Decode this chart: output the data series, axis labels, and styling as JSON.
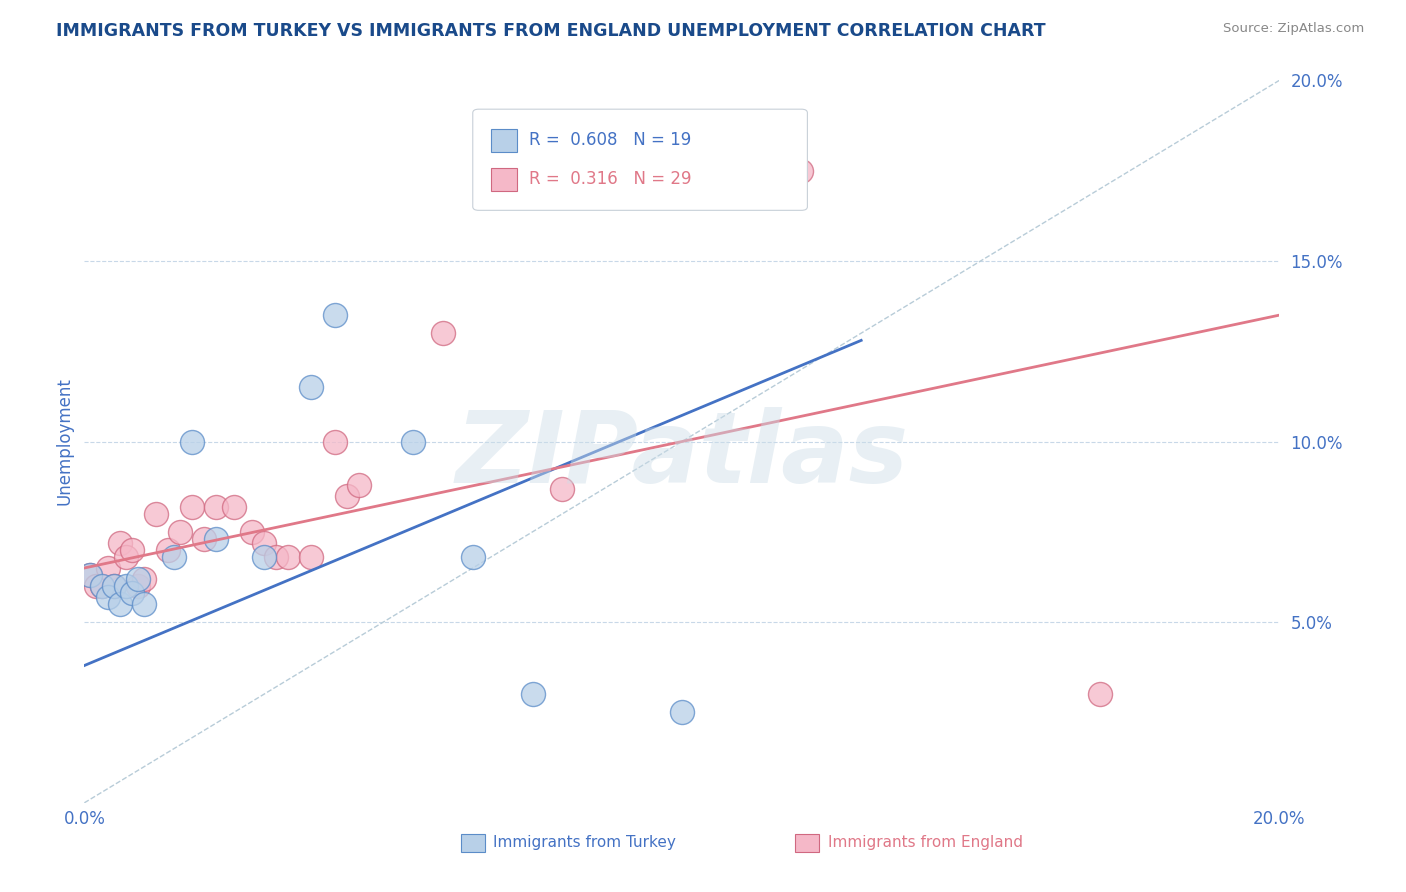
{
  "title": "IMMIGRANTS FROM TURKEY VS IMMIGRANTS FROM ENGLAND UNEMPLOYMENT CORRELATION CHART",
  "source": "Source: ZipAtlas.com",
  "ylabel": "Unemployment",
  "xmin": 0.0,
  "xmax": 0.2,
  "ymin": 0.0,
  "ymax": 0.2,
  "legend_bottom": [
    "Immigrants from Turkey",
    "Immigrants from England"
  ],
  "turkey_R": 0.608,
  "turkey_N": 19,
  "england_R": 0.316,
  "england_N": 29,
  "turkey_color": "#b8d0e8",
  "turkey_edge_color": "#5b8cc8",
  "turkey_line_color": "#4472c4",
  "england_color": "#f5b8c8",
  "england_edge_color": "#d06880",
  "england_line_color": "#e07888",
  "ref_line_color": "#b8ccd8",
  "watermark": "ZIPatlas",
  "background_color": "#ffffff",
  "grid_color": "#c8d8e8",
  "title_color": "#1a4a8a",
  "axis_label_color": "#4472c4",
  "turkey_line_x0": 0.0,
  "turkey_line_y0": 0.038,
  "turkey_line_x1": 0.13,
  "turkey_line_y1": 0.128,
  "england_line_x0": 0.0,
  "england_line_y0": 0.065,
  "england_line_x1": 0.2,
  "england_line_y1": 0.135,
  "turkey_scatter_x": [
    0.001,
    0.003,
    0.004,
    0.005,
    0.006,
    0.007,
    0.008,
    0.009,
    0.01,
    0.015,
    0.018,
    0.022,
    0.03,
    0.038,
    0.042,
    0.055,
    0.065,
    0.075,
    0.1
  ],
  "turkey_scatter_y": [
    0.063,
    0.06,
    0.057,
    0.06,
    0.055,
    0.06,
    0.058,
    0.062,
    0.055,
    0.068,
    0.1,
    0.073,
    0.068,
    0.115,
    0.135,
    0.1,
    0.068,
    0.03,
    0.025
  ],
  "england_scatter_x": [
    0.001,
    0.002,
    0.003,
    0.004,
    0.005,
    0.006,
    0.007,
    0.008,
    0.009,
    0.01,
    0.012,
    0.014,
    0.016,
    0.018,
    0.02,
    0.022,
    0.025,
    0.028,
    0.03,
    0.032,
    0.034,
    0.038,
    0.042,
    0.044,
    0.046,
    0.06,
    0.08,
    0.12,
    0.17
  ],
  "england_scatter_y": [
    0.063,
    0.06,
    0.06,
    0.065,
    0.06,
    0.072,
    0.068,
    0.07,
    0.06,
    0.062,
    0.08,
    0.07,
    0.075,
    0.082,
    0.073,
    0.082,
    0.082,
    0.075,
    0.072,
    0.068,
    0.068,
    0.068,
    0.1,
    0.085,
    0.088,
    0.13,
    0.087,
    0.175,
    0.03
  ]
}
